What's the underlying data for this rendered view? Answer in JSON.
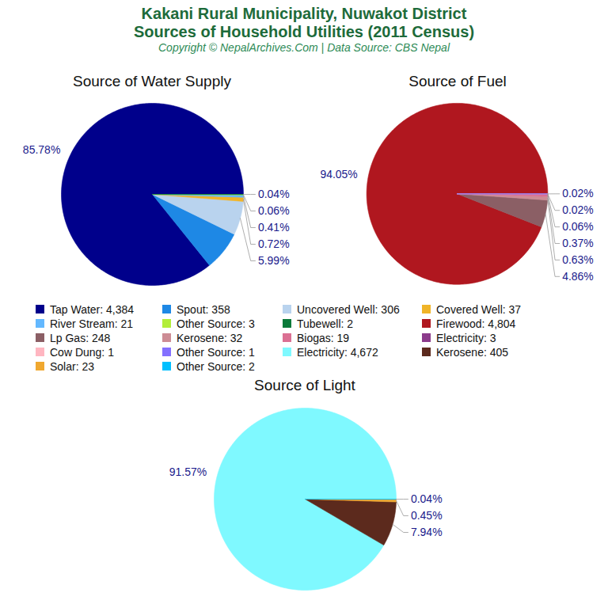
{
  "title": "Kakani Rural Municipality, Nuwakot District\nSources of Household Utilities (2011 Census)",
  "subtitle": "Copyright © NepalArchives.Com | Data Source: CBS Nepal",
  "chart_data": [
    {
      "type": "pie",
      "title": "Source of Water Supply",
      "categories": [
        "Tap Water: 4,384",
        "Spout: 358",
        "Uncovered Well: 306",
        "Covered Well: 37",
        "River Stream: 21",
        "Other Source: 3",
        "Tubewell: 2"
      ],
      "values": [
        85.78,
        7.0,
        5.99,
        0.72,
        0.41,
        0.06,
        0.04
      ],
      "value_labels": [
        "85.78%",
        null,
        "5.99%",
        "0.72%",
        "0.41%",
        "0.06%",
        "0.04%"
      ],
      "colors": [
        "#00008b",
        "#1e88e5",
        "#b9d3ee",
        "#f0b428",
        "#63b8ff",
        "#b3ee3a",
        "#0b7a3a"
      ],
      "data_labels": true
    },
    {
      "type": "pie",
      "title": "Source of Fuel",
      "categories": [
        "Firewood: 4,804",
        "Lp Gas: 248",
        "Kerosene: 32",
        "Biogas: 19",
        "Electricity: 3",
        "Cow Dung: 1",
        "Other Source: 1"
      ],
      "values": [
        94.05,
        4.86,
        0.63,
        0.37,
        0.06,
        0.02,
        0.02
      ],
      "value_labels": [
        "94.05%",
        "4.86%",
        "0.63%",
        "0.37%",
        "0.06%",
        "0.02%",
        "0.02%"
      ],
      "colors": [
        "#b0171f",
        "#8b5f65",
        "#cd8c95",
        "#db7093",
        "#8b3a8b",
        "#ffb6c1",
        "#8470ff"
      ],
      "data_labels": true
    },
    {
      "type": "pie",
      "title": "Source of Light",
      "categories": [
        "Electricity: 4,672",
        "Kerosene: 405",
        "Solar: 23",
        "Other Source: 2"
      ],
      "values": [
        91.57,
        7.94,
        0.45,
        0.04
      ],
      "value_labels": [
        "91.57%",
        "7.94%",
        "0.45%",
        "0.04%"
      ],
      "colors": [
        "#7ff9ff",
        "#5c2a1d",
        "#f0a830",
        "#00bfff"
      ],
      "data_labels": true
    }
  ]
}
